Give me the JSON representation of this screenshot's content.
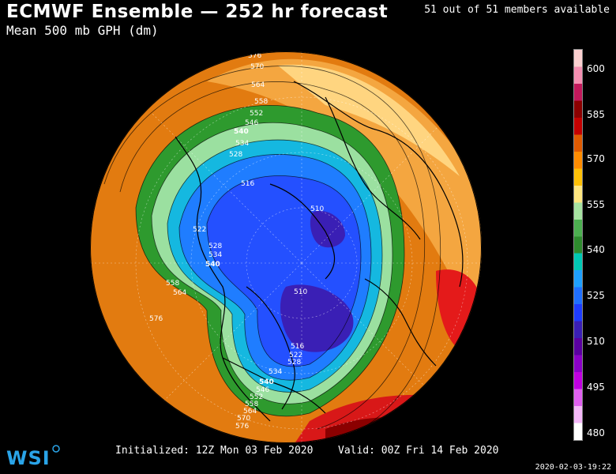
{
  "header": {
    "title": "ECMWF Ensemble — 252 hr forecast",
    "subtitle": "Mean 500 mb GPH (dm)",
    "members": "51 out of 51 members available"
  },
  "footer": {
    "initialized": "Initialized: 12Z Mon 03 Feb 2020",
    "valid": "Valid: 00Z Fri 14 Feb 2020",
    "timestamp": "2020-02-03-19:22",
    "logo": "WSI"
  },
  "colorbar": {
    "labels": [
      "600",
      "585",
      "570",
      "555",
      "540",
      "525",
      "510",
      "495",
      "480"
    ],
    "colors": [
      "#fbd0d0",
      "#f48fb1",
      "#c2185b",
      "#8b0000",
      "#c40000",
      "#e05a00",
      "#ff8c00",
      "#ffc107",
      "#ffe680",
      "#a6e3a1",
      "#4caf50",
      "#2e8b2e",
      "#00c8b4",
      "#1ea0ff",
      "#1f6fff",
      "#1e3cff",
      "#3a1fb5",
      "#5a00a0",
      "#8b00c8",
      "#c000e0",
      "#e060f0",
      "#f4b8f8",
      "#ffffff"
    ]
  },
  "contour_labels": [
    "576",
    "570",
    "564",
    "558",
    "552",
    "546",
    "540",
    "534",
    "528",
    "516",
    "510",
    "522",
    "528",
    "534",
    "540",
    "558",
    "564",
    "576",
    "510",
    "516",
    "522",
    "528",
    "534",
    "540",
    "546",
    "552",
    "558",
    "564",
    "570",
    "576"
  ],
  "map": {
    "projection": "polar stereographic",
    "field": "500 mb geopotential height"
  }
}
